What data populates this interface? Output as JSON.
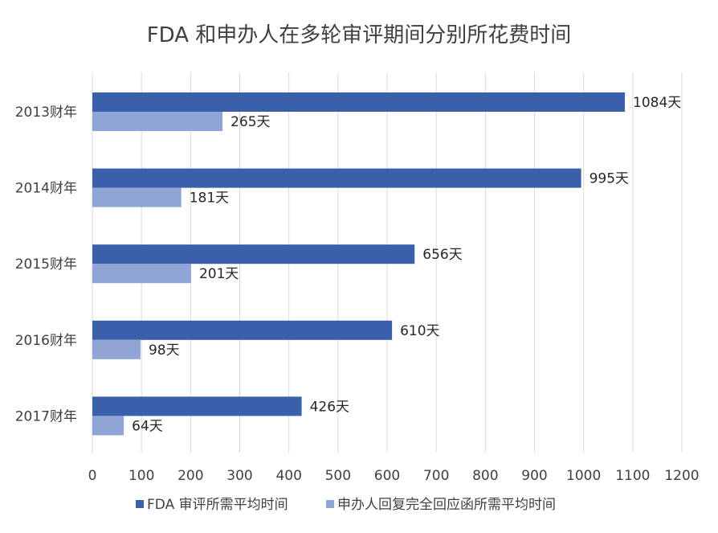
{
  "chart_data": {
    "type": "bar",
    "orientation": "horizontal",
    "title": "FDA 和申办人在多轮审评期间分别所花费时间",
    "categories": [
      "2013财年",
      "2014财年",
      "2015财年",
      "2016财年",
      "2017财年"
    ],
    "series": [
      {
        "name": "FDA 审评所需平均时间",
        "values": [
          1084,
          995,
          656,
          610,
          426
        ],
        "labels": [
          "1084天",
          "995天",
          "656天",
          "610天",
          "426天"
        ],
        "color": "#3A5FAB"
      },
      {
        "name": "申办人回复完全回应函所需平均时间",
        "values": [
          265,
          181,
          201,
          98,
          64
        ],
        "labels": [
          "265天",
          "181天",
          "201天",
          "98天",
          "64天"
        ],
        "color": "#91A4D6"
      }
    ],
    "xlim": [
      0,
      1200
    ],
    "xticks": [
      0,
      100,
      200,
      300,
      400,
      500,
      600,
      700,
      800,
      900,
      1000,
      1100,
      1200
    ],
    "grid": true,
    "legend_position": "bottom",
    "gridline_color": "#D9D9D9"
  }
}
